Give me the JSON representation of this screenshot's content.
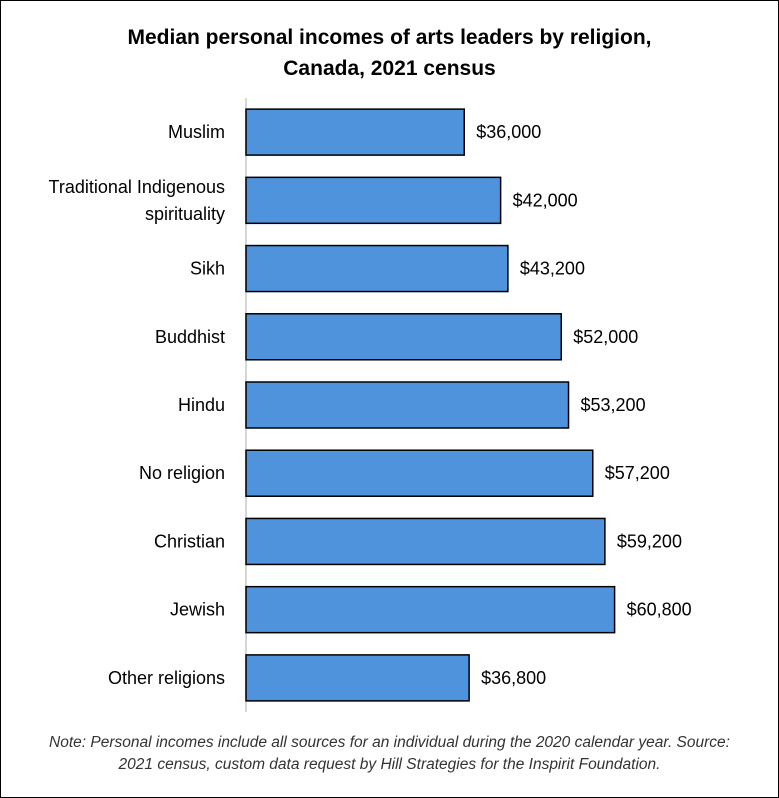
{
  "chart_data": {
    "type": "bar",
    "orientation": "horizontal",
    "title_lines": [
      "Median personal incomes of arts leaders by religion,",
      "Canada, 2021 census"
    ],
    "categories": [
      [
        "Muslim"
      ],
      [
        "Traditional Indigenous",
        "spirituality"
      ],
      [
        "Sikh"
      ],
      [
        "Buddhist"
      ],
      [
        "Hindu"
      ],
      [
        "No religion"
      ],
      [
        "Christian"
      ],
      [
        "Jewish"
      ],
      [
        "Other religions"
      ]
    ],
    "values": [
      36000,
      42000,
      43200,
      52000,
      53200,
      57200,
      59200,
      60800,
      36800
    ],
    "data_labels": [
      "$36,000",
      "$42,000",
      "$43,200",
      "$52,000",
      "$53,200",
      "$57,200",
      "$59,200",
      "$60,800",
      "$36,800"
    ],
    "xlim": [
      0,
      64000
    ],
    "grid": false,
    "legend": "none",
    "bar_color": "#4f93dc",
    "bar_edge_color": "#000000",
    "axis_color": "#c8c8c8"
  },
  "note_lines": [
    "Note: Personal incomes include all sources for an individual during the 2020 calendar year. Source:",
    "2021 census, custom data request by Hill Strategies for the Inspirit Foundation."
  ]
}
